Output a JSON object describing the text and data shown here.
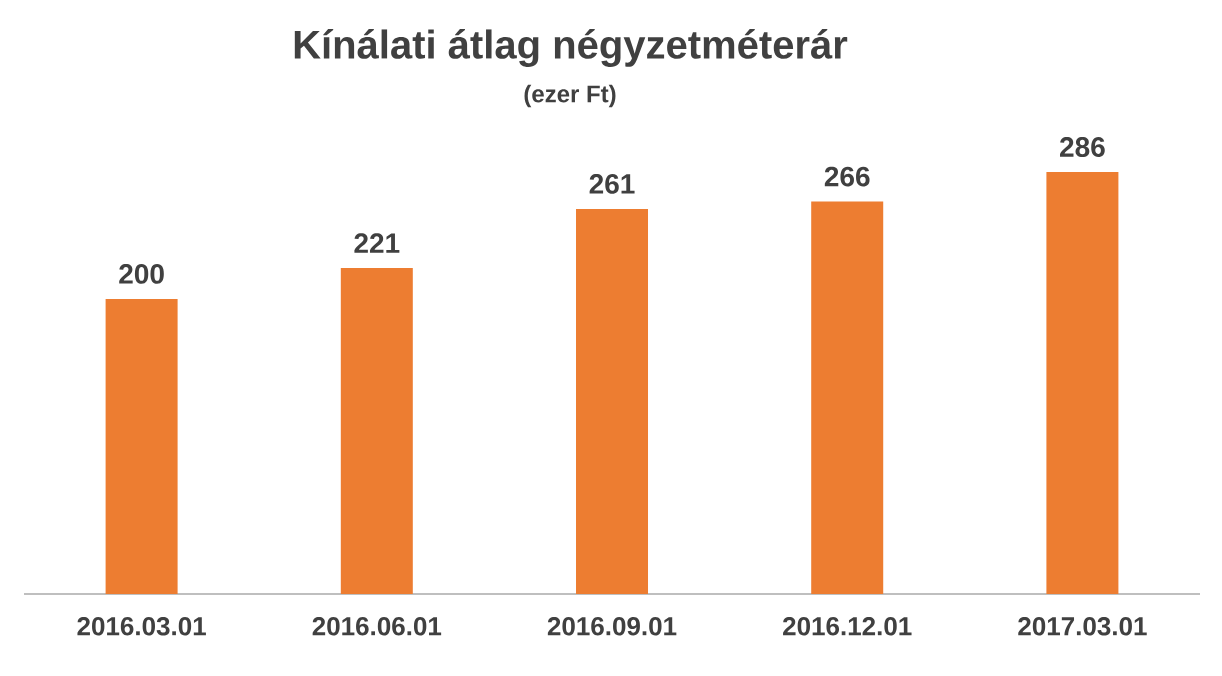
{
  "chart_data": {
    "type": "bar",
    "title": "Kínálati átlag négyzetméterár",
    "subtitle": "(ezer Ft)",
    "categories": [
      "2016.03.01",
      "2016.06.01",
      "2016.09.01",
      "2016.12.01",
      "2017.03.01"
    ],
    "values": [
      200,
      221,
      261,
      266,
      286
    ],
    "color": "#ed7d31",
    "data_labels": true
  }
}
